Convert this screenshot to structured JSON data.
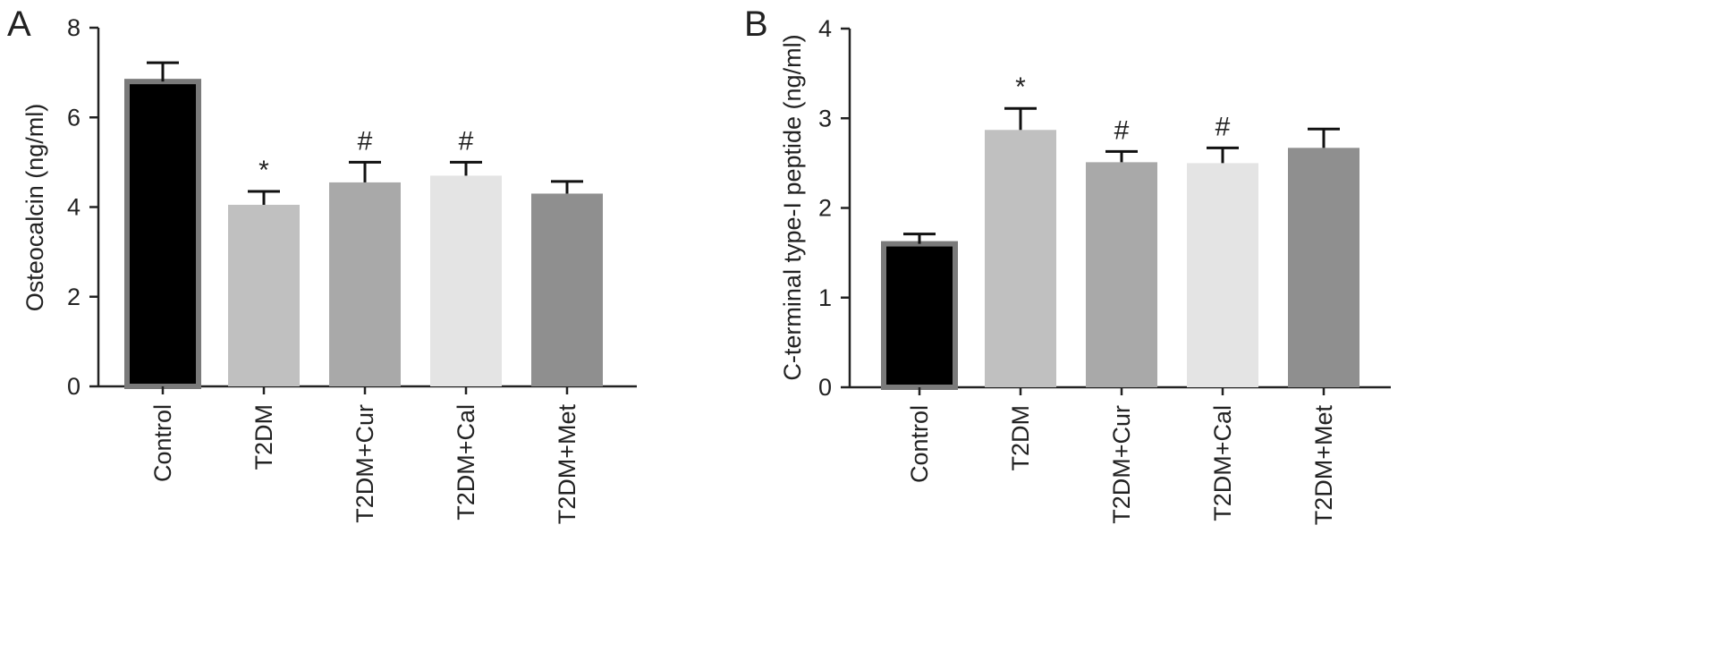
{
  "chart_data": [
    {
      "panel": "A",
      "type": "bar",
      "categories": [
        "Control",
        "T2DM",
        "T2DM+Cur",
        "T2DM+Cal",
        "T2DM+Met"
      ],
      "values": [
        6.8,
        4.05,
        4.55,
        4.7,
        4.3
      ],
      "errors": [
        0.42,
        0.3,
        0.45,
        0.3,
        0.27
      ],
      "annotations": [
        "",
        "*",
        "#",
        "#",
        ""
      ],
      "ylabel": "Osteocalcin (ng/ml)",
      "ylim": [
        0,
        8
      ],
      "yticks": [
        0,
        2,
        4,
        6,
        8
      ],
      "colors": [
        "#000000",
        "#c0c0c0",
        "#a9a9a9",
        "#e4e4e4",
        "#8f8f8f"
      ],
      "grid": false
    },
    {
      "panel": "B",
      "type": "bar",
      "categories": [
        "Control",
        "T2DM",
        "T2DM+Cur",
        "T2DM+Cal",
        "T2DM+Met"
      ],
      "values": [
        1.6,
        2.87,
        2.51,
        2.5,
        2.67
      ],
      "errors": [
        0.11,
        0.24,
        0.12,
        0.17,
        0.21
      ],
      "annotations": [
        "",
        "*",
        "#",
        "#",
        ""
      ],
      "ylabel": "C-terminal type-I peptide (ng/ml)",
      "ylim": [
        0,
        4
      ],
      "yticks": [
        0,
        1,
        2,
        3,
        4
      ],
      "colors": [
        "#000000",
        "#c0c0c0",
        "#a9a9a9",
        "#e4e4e4",
        "#8f8f8f"
      ],
      "grid": false
    }
  ]
}
